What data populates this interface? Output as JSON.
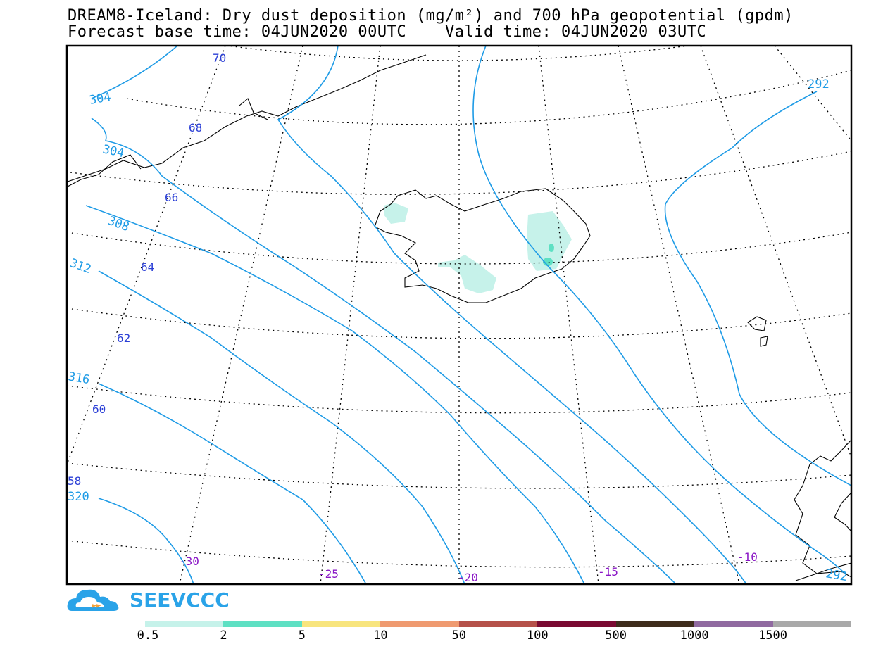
{
  "header": {
    "title_line1": "DREAM8-Iceland: Dry dust deposition (mg/m²) and 700 hPa geopotential (gpdm)",
    "title_line2": "Forecast base time: 04JUN2020 00UTC    Valid time: 04JUN2020 03UTC"
  },
  "map": {
    "contour_color": "#1e9be6",
    "lat_label_color": "#2b3fd6",
    "lon_label_color": "#8a16c6",
    "contour_labels": [
      "304",
      "304",
      "308",
      "312",
      "316",
      "320",
      "292",
      "292"
    ],
    "lat_labels": [
      "70",
      "68",
      "66",
      "64",
      "62",
      "60",
      "58"
    ],
    "lon_labels": [
      "-30",
      "-25",
      "-20",
      "-15",
      "-10"
    ]
  },
  "logo": {
    "text": "SEEVCCC",
    "icon": "cloud-logo-icon",
    "color": "#2aa3e8"
  },
  "colorbar": {
    "colors": [
      "#c6f2ea",
      "#5ee0c3",
      "#f8e57e",
      "#ef9a70",
      "#b5514a",
      "#7a0a32",
      "#3e2c1c",
      "#906aa0",
      "#a9a9a9"
    ],
    "labels": [
      "0.5",
      "2",
      "5",
      "10",
      "50",
      "100",
      "500",
      "1000",
      "1500"
    ]
  }
}
